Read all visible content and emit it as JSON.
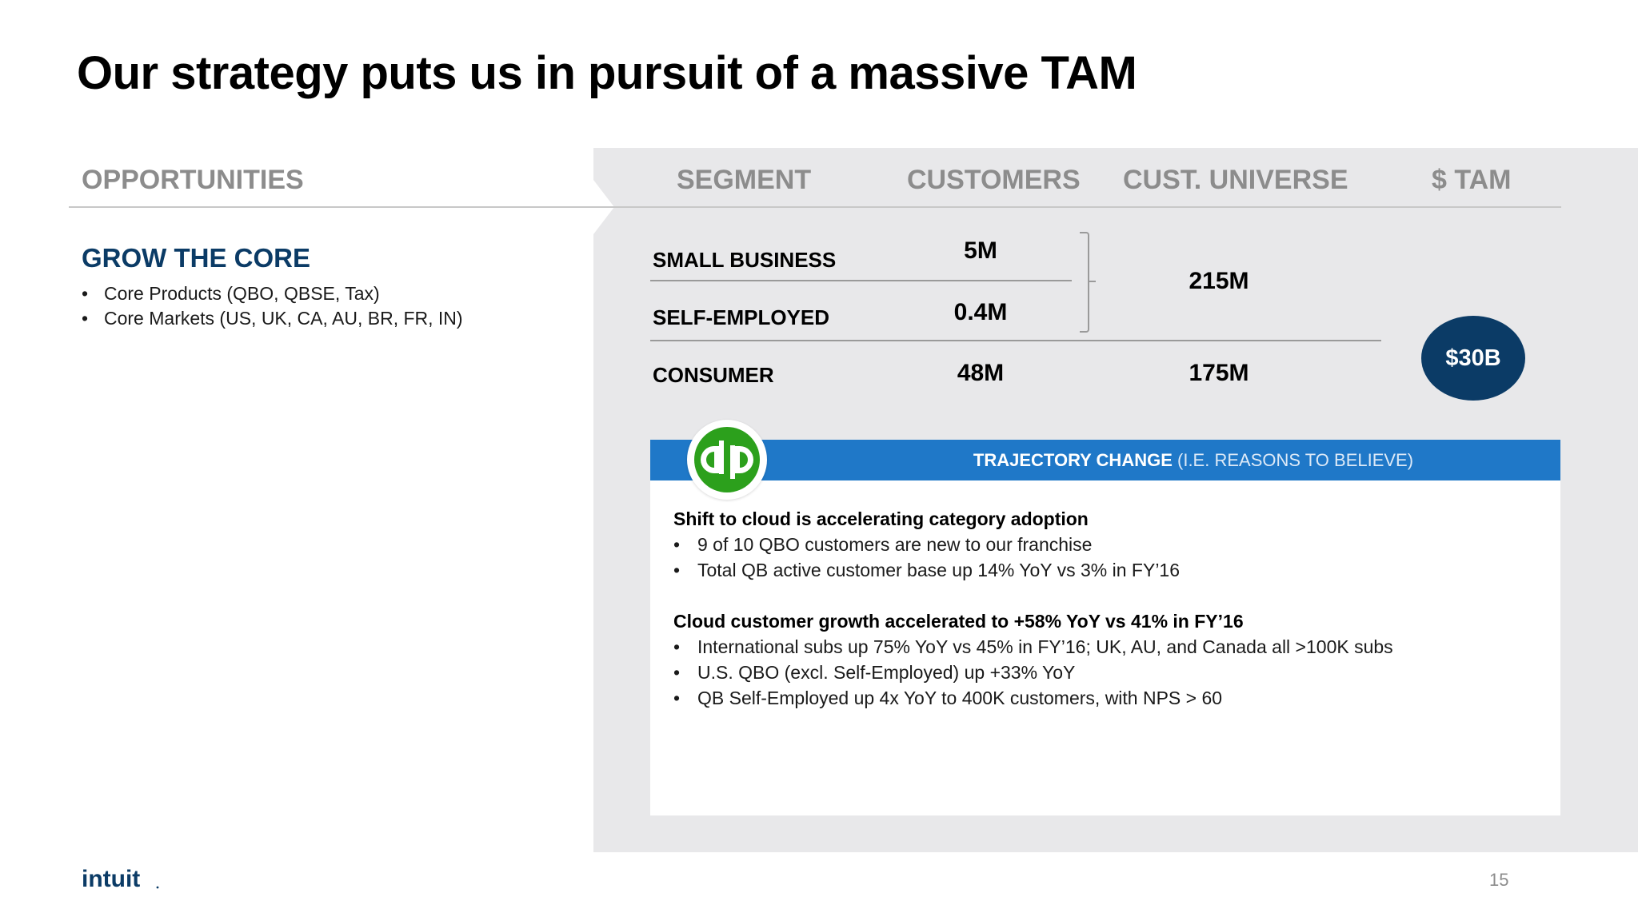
{
  "title": "Our strategy puts us in pursuit of a massive TAM",
  "headers": {
    "opportunities": "OPPORTUNITIES",
    "segment": "SEGMENT",
    "customers": "CUSTOMERS",
    "universe": "CUST. UNIVERSE",
    "tam": "$ TAM"
  },
  "left": {
    "title": "GROW THE CORE",
    "bullets": [
      "Core Products (QBO, QBSE, Tax)",
      "Core Markets (US, UK, CA, AU, BR, FR, IN)"
    ]
  },
  "segments": [
    {
      "label": "SMALL BUSINESS",
      "customers": "5M"
    },
    {
      "label": "SELF-EMPLOYED",
      "customers": "0.4M"
    },
    {
      "label": "CONSUMER",
      "customers": "48M",
      "universe": "175M"
    }
  ],
  "combined_universe": "215M",
  "tam_total": "$30B",
  "trajectory": {
    "bold": "TRAJECTORY CHANGE",
    "rest": " (I.E. REASONS TO BELIEVE)",
    "sections": [
      {
        "heading": "Shift to cloud is accelerating category adoption",
        "bullets": [
          "9 of 10 QBO customers are new to our franchise",
          "Total QB active customer base up 14% YoY vs 3% in FY’16"
        ]
      },
      {
        "heading": "Cloud customer growth accelerated to +58% YoY vs 41% in FY’16",
        "bullets": [
          "International subs up 75% YoY vs 45% in FY’16; UK, AU, and Canada all >100K subs",
          "U.S. QBO (excl. Self-Employed) up +33% YoY",
          "QB Self-Employed up 4x YoY to 400K customers, with NPS > 60"
        ]
      }
    ]
  },
  "bullet_char": "•",
  "logo_text": "intuit",
  "page_number": "15",
  "colors": {
    "navy": "#0b3b66",
    "blue_bar": "#1f78c8",
    "panel_grey": "#e8e8ea",
    "qb_green": "#2ca01c"
  },
  "icons": {
    "qb_logo": "quickbooks-logo-icon"
  }
}
